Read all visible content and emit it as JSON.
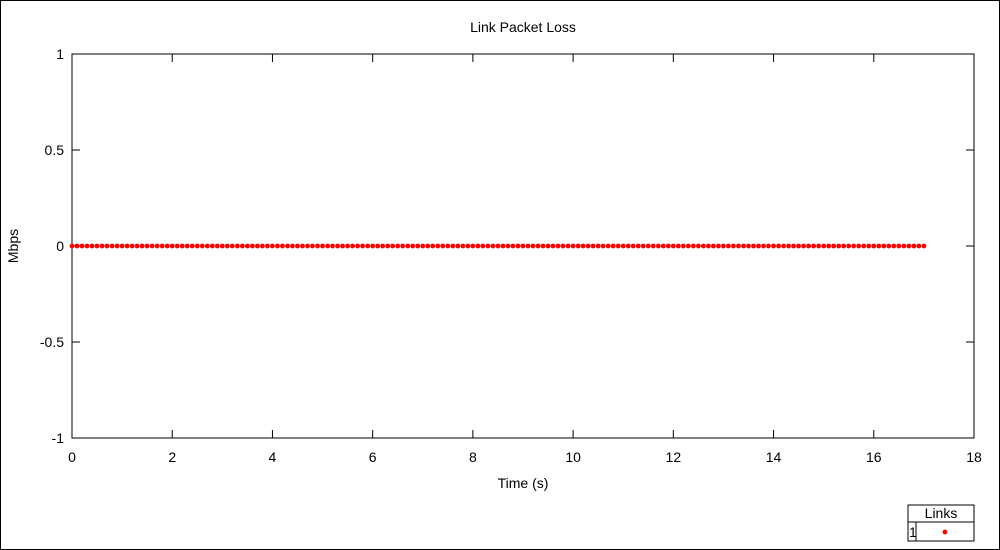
{
  "chart_data": {
    "type": "scatter",
    "title": "Link Packet Loss",
    "xlabel": "Time (s)",
    "ylabel": "Mbps",
    "xlim": [
      0,
      18
    ],
    "ylim": [
      -1,
      1
    ],
    "xticks": [
      "0",
      "2",
      "4",
      "6",
      "8",
      "10",
      "12",
      "14",
      "16",
      "18"
    ],
    "yticks": [
      "-1",
      "-0.5",
      "0",
      "0.5",
      "1"
    ],
    "grid": false,
    "legend": {
      "title": "Links",
      "placement": "bottom-right",
      "entries": [
        "1"
      ]
    },
    "series": [
      {
        "name": "1",
        "color": "#ff0000",
        "x_start": 0,
        "x_end": 17,
        "x_step": 0.1,
        "y": 0
      }
    ]
  }
}
